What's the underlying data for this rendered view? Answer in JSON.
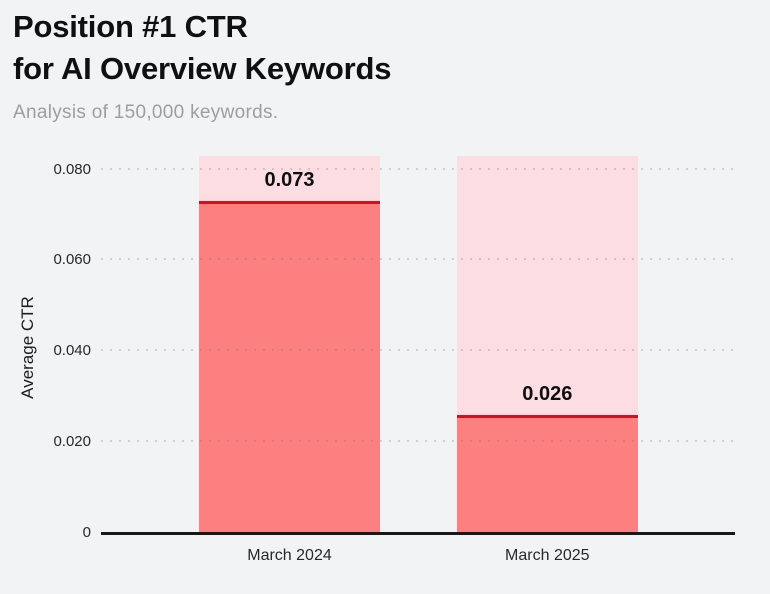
{
  "header": {
    "title_line1": "Position #1 CTR",
    "title_line2": "for AI Overview Keywords",
    "subtitle": "Analysis of 150,000 keywords."
  },
  "chart_data": {
    "type": "bar",
    "title": "Position #1 CTR for AI Overview Keywords",
    "subtitle": "Analysis of 150,000 keywords.",
    "categories": [
      "March 2024",
      "March 2025"
    ],
    "values": [
      0.073,
      0.026
    ],
    "value_labels": [
      "0.073",
      "0.026"
    ],
    "series": [
      {
        "name": "Average CTR",
        "values": [
          0.073,
          0.026
        ]
      }
    ],
    "xlabel": "",
    "ylabel": "Average CTR",
    "ylim": [
      0,
      0.083
    ],
    "yticks": [
      0,
      0.02,
      0.04,
      0.06,
      0.08
    ],
    "ytick_labels": [
      "0",
      "0.020",
      "0.040",
      "0.060",
      "0.080"
    ],
    "grid": "horizontal-dotted",
    "legend_position": "none",
    "bar_style": {
      "track": "full-height pale pink bar behind each column",
      "value_line": "dark red line drawn across the top of each value bar",
      "value_label": "bold number above the value line inside the track"
    }
  },
  "colors": {
    "background": "#f2f3f5",
    "title_text": "#0f1011",
    "subtitle_text": "#9b9ea3",
    "bar_fill": "#fc8080",
    "bar_track": "#fcdde1",
    "value_line": "#d2121b",
    "axis_line": "#17181a",
    "grid_dot": "rgba(110,118,128,0.28)",
    "tick_text": "#26282b",
    "value_label_text": "#0e0f10"
  }
}
